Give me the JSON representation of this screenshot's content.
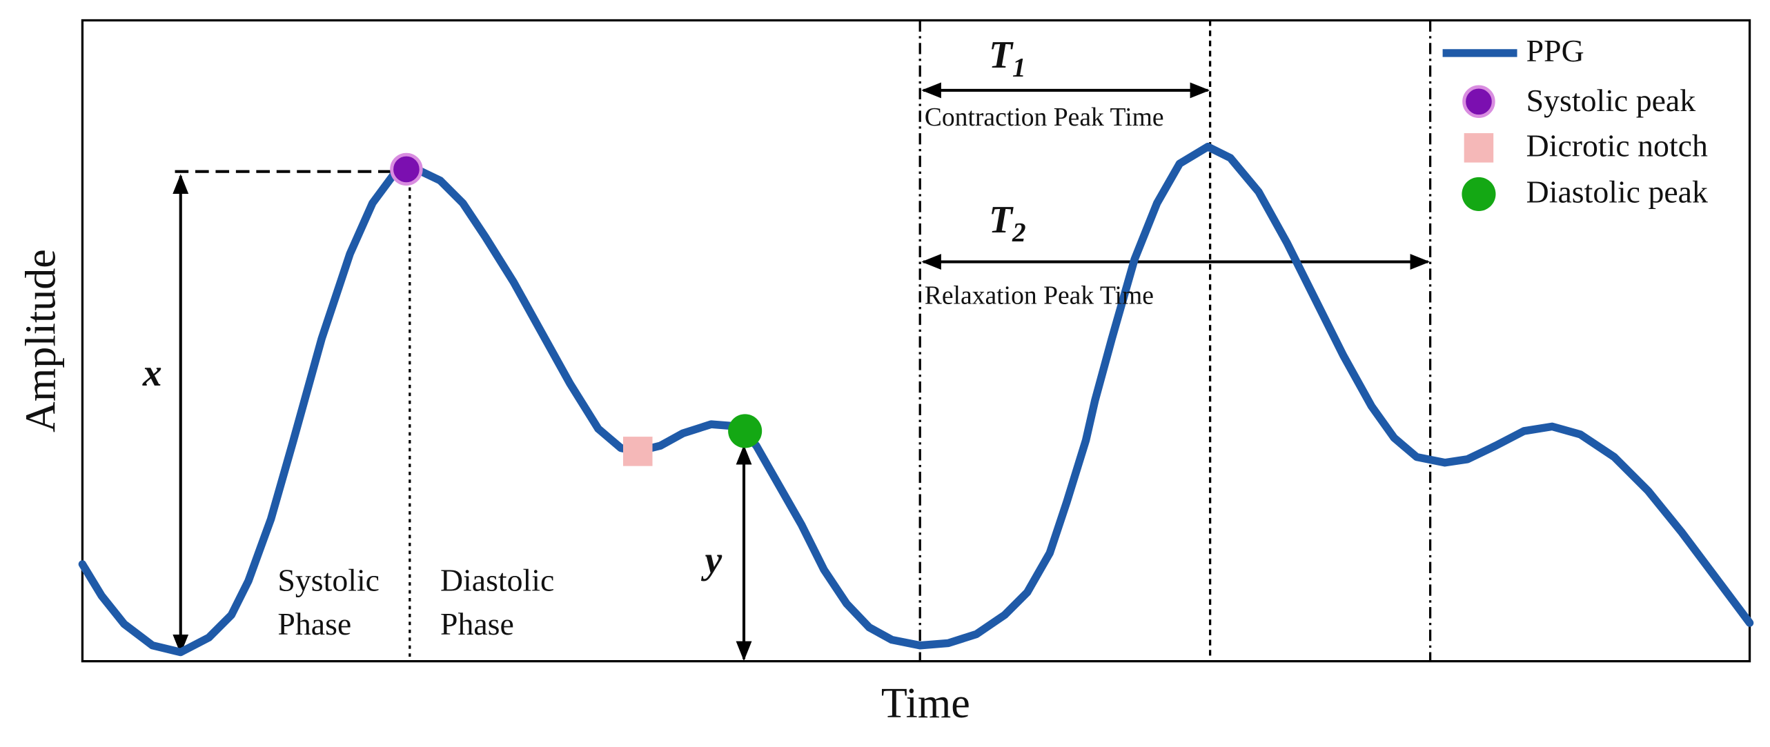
{
  "axes": {
    "x_label": "Time",
    "y_label": "Amplitude"
  },
  "annotations": {
    "x": "x",
    "y": "y",
    "systolic_phase": [
      "Systolic",
      "Phase"
    ],
    "diastolic_phase": [
      "Diastolic",
      "Phase"
    ],
    "t1": {
      "symbol": "T",
      "subscript": "1",
      "caption": "Contraction Peak Time"
    },
    "t2": {
      "symbol": "T",
      "subscript": "2",
      "caption": "Relaxation Peak  Time"
    }
  },
  "legend": [
    "PPG",
    "Systolic peak",
    "Dicrotic notch",
    "Diastolic peak"
  ]
}
